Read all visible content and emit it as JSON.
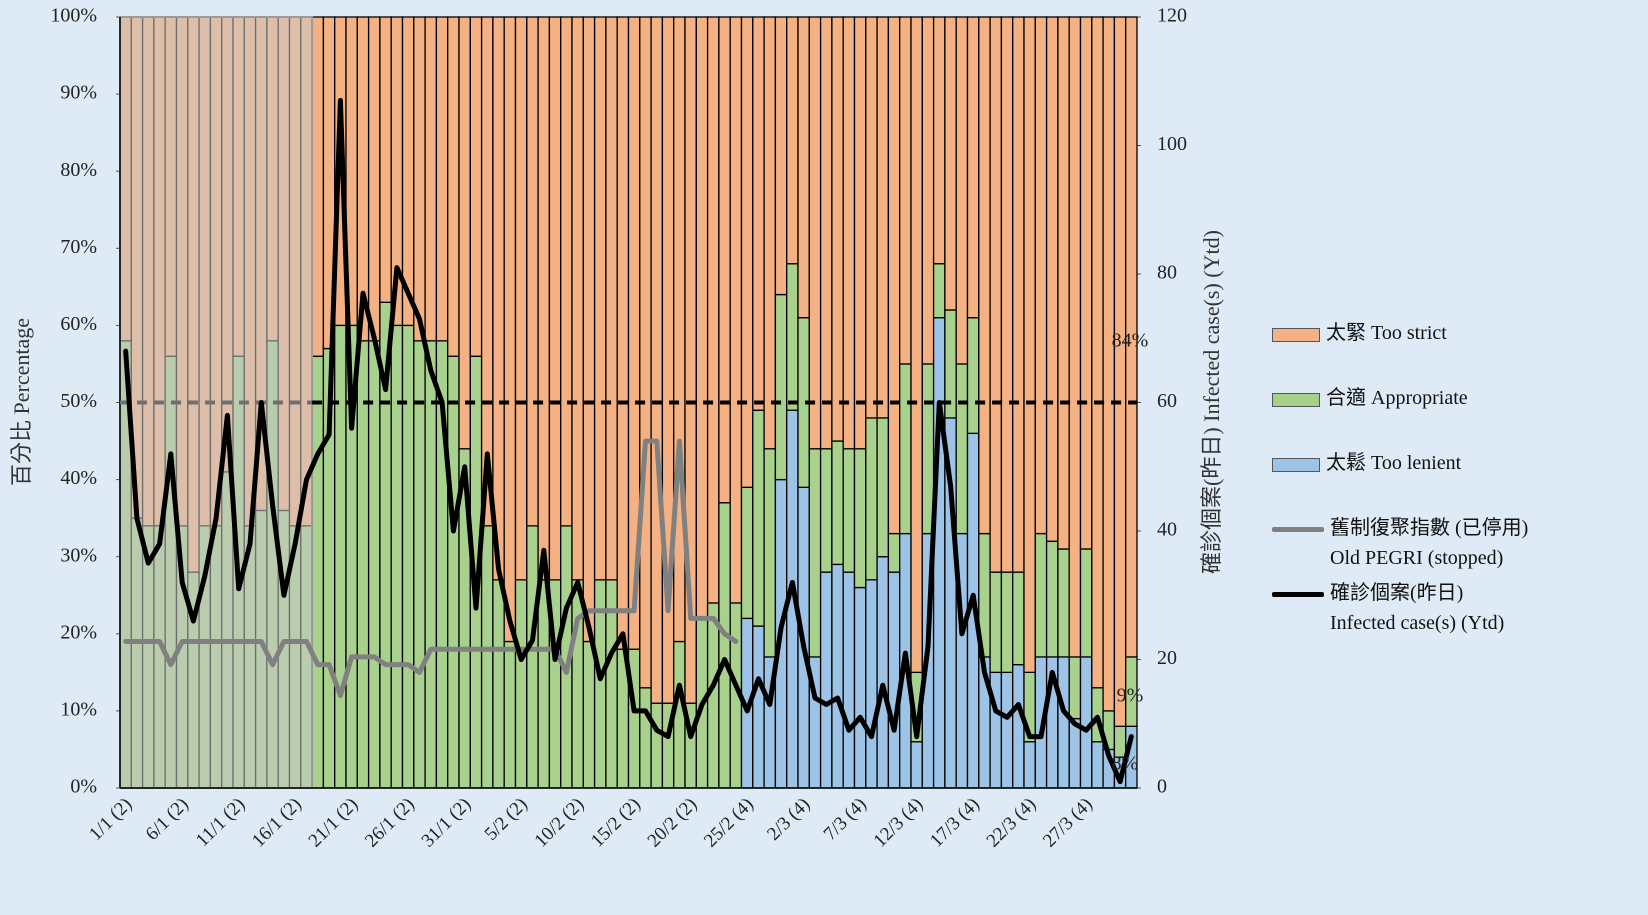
{
  "chart_data": {
    "type": "bar",
    "stacked": true,
    "ylabel": "百分比 Percentage",
    "y2label": "確診個案(昨日) Infected case(s) (Ytd)",
    "categories": [
      "1/1 (2)",
      null,
      null,
      null,
      null,
      "6/1 (2)",
      null,
      null,
      null,
      null,
      "11/1 (2)",
      null,
      null,
      null,
      null,
      "16/1 (2)",
      null,
      null,
      null,
      null,
      "21/1 (2)",
      null,
      null,
      null,
      null,
      "26/1 (2)",
      null,
      null,
      null,
      null,
      "31/1 (2)",
      null,
      null,
      null,
      null,
      "5/2 (2)",
      null,
      null,
      null,
      null,
      "10/2 (2)",
      null,
      null,
      null,
      null,
      "15/2 (2)",
      null,
      null,
      null,
      null,
      "20/2 (2)",
      null,
      null,
      null,
      null,
      "25/2 (4)",
      null,
      null,
      null,
      null,
      "2/3 (4)",
      null,
      null,
      null,
      null,
      "7/3 (4)",
      null,
      null,
      null,
      null,
      "12/3 (4)",
      null,
      null,
      null,
      null,
      "17/3 (4)",
      null,
      null,
      null,
      null,
      "22/3 (4)",
      null,
      null,
      null,
      null,
      "27/3 (4)",
      null,
      null,
      null,
      null
    ],
    "series": [
      {
        "name": "太鬆 Too lenient",
        "color": "#9dc3e6",
        "values": [
          0,
          0,
          0,
          0,
          0,
          0,
          0,
          0,
          0,
          0,
          0,
          0,
          0,
          0,
          0,
          0,
          0,
          0,
          0,
          0,
          0,
          0,
          0,
          0,
          0,
          0,
          0,
          0,
          0,
          0,
          0,
          0,
          0,
          0,
          0,
          0,
          0,
          0,
          0,
          0,
          0,
          0,
          0,
          0,
          0,
          0,
          0,
          0,
          0,
          0,
          0,
          0,
          0,
          0,
          0,
          22,
          21,
          17,
          40,
          49,
          39,
          17,
          28,
          29,
          28,
          26,
          27,
          30,
          28,
          33,
          6,
          33,
          61,
          48,
          33,
          46,
          17,
          15,
          15,
          16,
          6,
          17,
          17,
          17,
          9,
          17,
          6,
          5,
          4,
          8
        ]
      },
      {
        "name": "合適 Appropriate",
        "color": "#a9d18e",
        "values": [
          58,
          35,
          34,
          34,
          56,
          34,
          28,
          34,
          34,
          41,
          56,
          34,
          36,
          58,
          36,
          34,
          34,
          56,
          57,
          60,
          60,
          58,
          58,
          63,
          60,
          60,
          58,
          58,
          58,
          56,
          44,
          56,
          34,
          27,
          19,
          27,
          34,
          27,
          27,
          34,
          27,
          19,
          27,
          27,
          18,
          18,
          13,
          11,
          11,
          19,
          11,
          22,
          24,
          37,
          24,
          17,
          28,
          27,
          24,
          19,
          22,
          27,
          16,
          16,
          16,
          18,
          21,
          18,
          5,
          22,
          9,
          22,
          7,
          14,
          22,
          15,
          16,
          13,
          13,
          12,
          9,
          16,
          15,
          14,
          8,
          14,
          7,
          5,
          4,
          9
        ]
      },
      {
        "name": "太緊 Too strict",
        "color": "#f4b183",
        "values": [
          42,
          65,
          66,
          66,
          44,
          66,
          72,
          66,
          66,
          59,
          44,
          66,
          64,
          42,
          64,
          66,
          66,
          44,
          43,
          40,
          40,
          42,
          42,
          37,
          40,
          40,
          42,
          42,
          42,
          44,
          56,
          44,
          66,
          73,
          81,
          73,
          66,
          73,
          73,
          66,
          73,
          81,
          73,
          73,
          82,
          82,
          87,
          89,
          89,
          81,
          89,
          78,
          76,
          63,
          76,
          61,
          51,
          56,
          36,
          32,
          39,
          56,
          56,
          55,
          56,
          56,
          52,
          52,
          67,
          45,
          85,
          45,
          32,
          38,
          45,
          39,
          67,
          72,
          72,
          72,
          85,
          67,
          68,
          69,
          83,
          69,
          87,
          90,
          92,
          83
        ]
      },
      {
        "name": "舊制復聚指數 (已停用)\nOld PEGRI (stopped)",
        "type": "line",
        "color": "#808080",
        "values": [
          19,
          19,
          19,
          19,
          16,
          19,
          19,
          19,
          19,
          19,
          19,
          19,
          19,
          16,
          19,
          19,
          19,
          16,
          16,
          12,
          17,
          17,
          17,
          16,
          16,
          16,
          15,
          18,
          18,
          18,
          18,
          18,
          18,
          18,
          18,
          18,
          18,
          18,
          18,
          15,
          22,
          23,
          23,
          23,
          23,
          23,
          45,
          45,
          23,
          45,
          22,
          22,
          22,
          20,
          19,
          null,
          null,
          null,
          null,
          null,
          null,
          null,
          null,
          null,
          null,
          null,
          null,
          null,
          null,
          null,
          null,
          null,
          null,
          null,
          null,
          null,
          null,
          null,
          null,
          null,
          null,
          null,
          null,
          null,
          null,
          null,
          null,
          null,
          null,
          null
        ]
      },
      {
        "name": "確診個案(昨日)\nInfected case(s) (Ytd)",
        "type": "line",
        "axis": "y2",
        "color": "#000000",
        "values": [
          68,
          42,
          35,
          38,
          52,
          32,
          26,
          33,
          42,
          58,
          31,
          38,
          60,
          44,
          30,
          38,
          48,
          52,
          55,
          107,
          56,
          77,
          70,
          62,
          81,
          77,
          73,
          65,
          60,
          40,
          50,
          28,
          52,
          34,
          26,
          20,
          23,
          37,
          20,
          28,
          32,
          25,
          17,
          21,
          24,
          12,
          12,
          9,
          8,
          16,
          8,
          13,
          16,
          20,
          16,
          12,
          17,
          13,
          25,
          32,
          22,
          14,
          13,
          14,
          9,
          11,
          8,
          16,
          9,
          21,
          8,
          22,
          60,
          47,
          24,
          30,
          18,
          12,
          11,
          13,
          8,
          8,
          18,
          12,
          10,
          9,
          11,
          5,
          1,
          8
        ]
      }
    ],
    "ylim": [
      0,
      100
    ],
    "yticks": [
      {
        "value": 0,
        "label": "0%"
      },
      {
        "value": 10,
        "label": "10%"
      },
      {
        "value": 20,
        "label": "20%"
      },
      {
        "value": 30,
        "label": "30%"
      },
      {
        "value": 40,
        "label": "40%"
      },
      {
        "value": 50,
        "label": "50%"
      },
      {
        "value": 60,
        "label": "60%"
      },
      {
        "value": 70,
        "label": "70%"
      },
      {
        "value": 80,
        "label": "80%"
      },
      {
        "value": 90,
        "label": "90%"
      },
      {
        "value": 100,
        "label": "100%"
      }
    ],
    "y2lim": [
      0,
      120
    ],
    "y2ticks": [
      0,
      20,
      40,
      60,
      80,
      100,
      120
    ],
    "reference_line": 50,
    "annotations": [
      "84%",
      "9%",
      "8%"
    ]
  }
}
